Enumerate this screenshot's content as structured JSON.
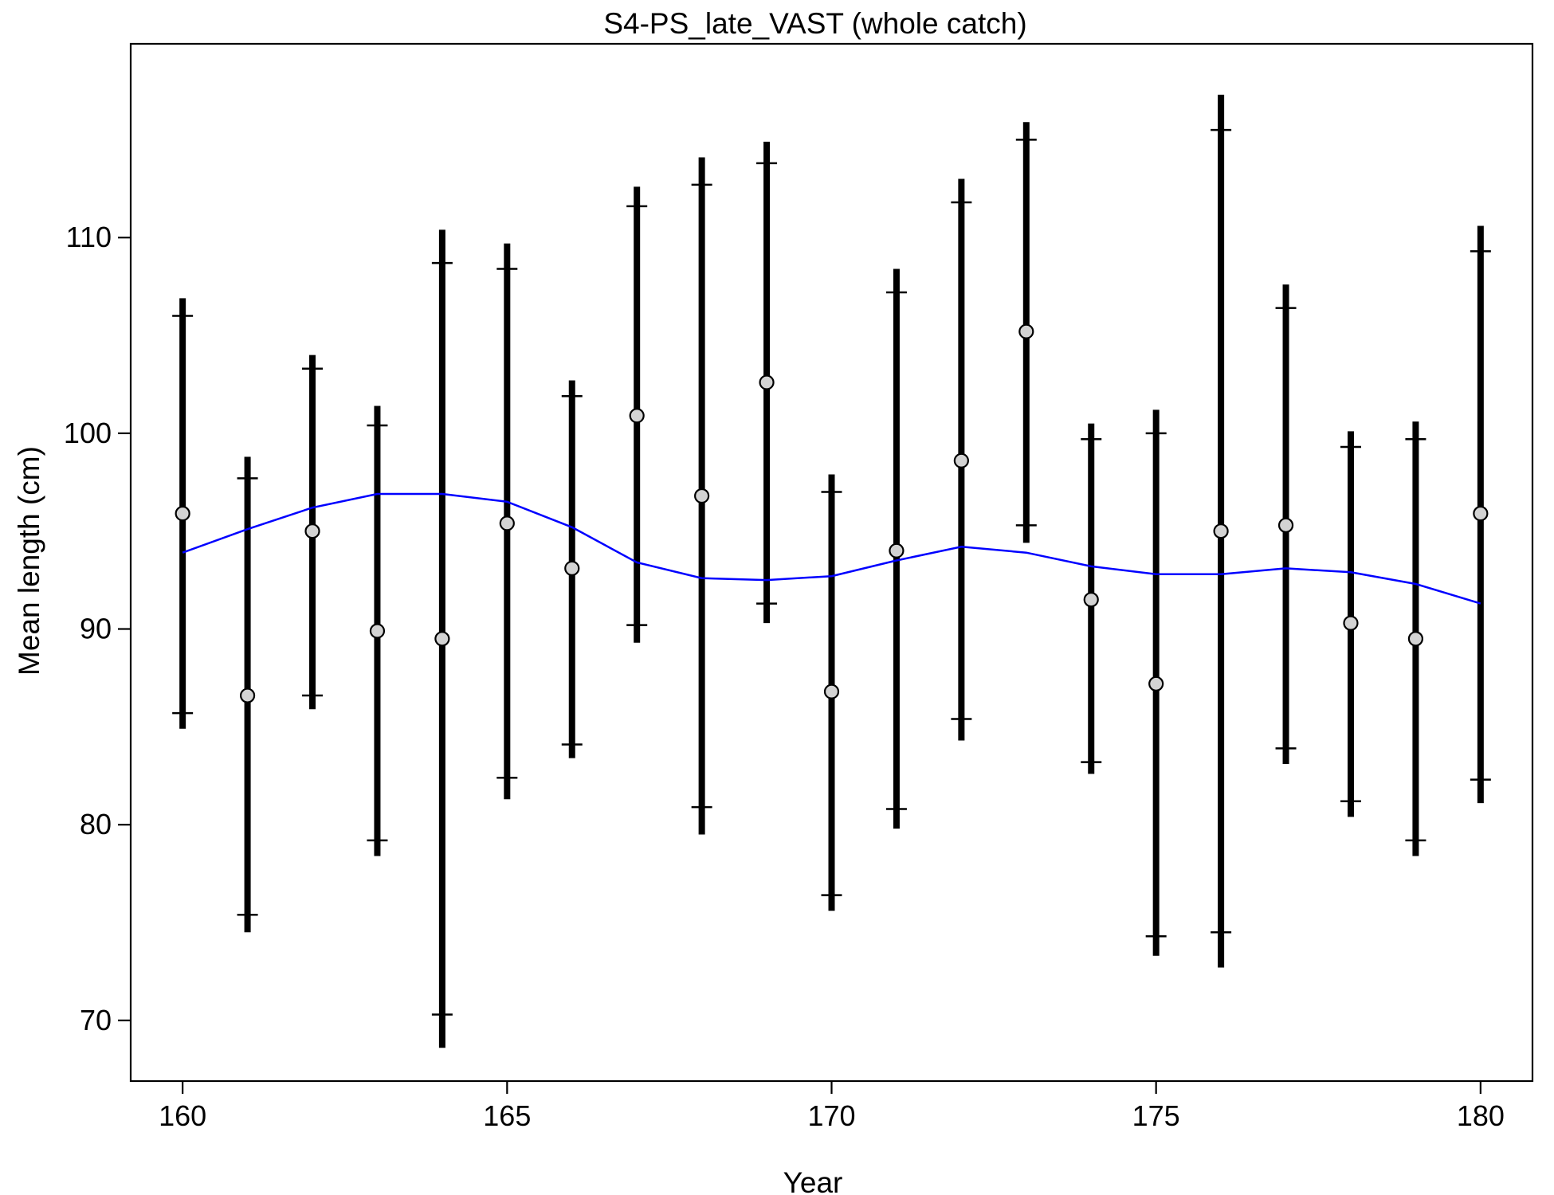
{
  "chart_data": {
    "type": "line",
    "title": "S4-PS_late_VAST (whole catch)",
    "xlabel": "Year",
    "ylabel": "Mean length (cm)",
    "xlim": [
      159.2,
      180.8
    ],
    "ylim": [
      66.9,
      119.9
    ],
    "xticks": [
      160,
      165,
      170,
      175,
      180
    ],
    "yticks": [
      70,
      80,
      90,
      100,
      110
    ],
    "grid": false,
    "legend": "none",
    "colors": {
      "observed_points": "#d3d3d3",
      "observed_outline": "#000000",
      "error_bars": "#000000",
      "expected_line": "#0000ff"
    },
    "series": [
      {
        "type": "errorbar_points",
        "x": [
          160,
          161,
          162,
          163,
          164,
          165,
          166,
          167,
          168,
          169,
          170,
          171,
          172,
          173,
          174,
          175,
          176,
          177,
          178,
          179,
          180
        ],
        "y": [
          95.9,
          86.6,
          95.0,
          89.9,
          89.5,
          95.4,
          93.1,
          100.9,
          96.8,
          102.6,
          86.8,
          94.0,
          98.6,
          105.2,
          91.5,
          87.2,
          95.0,
          95.3,
          90.3,
          89.5,
          95.9
        ],
        "outer_low": [
          84.9,
          74.5,
          85.9,
          78.4,
          68.6,
          81.3,
          83.4,
          89.3,
          79.5,
          90.3,
          75.6,
          79.8,
          84.3,
          94.4,
          82.6,
          73.3,
          72.7,
          83.1,
          80.4,
          78.4,
          81.1
        ],
        "outer_high": [
          106.9,
          98.8,
          104.0,
          101.4,
          110.4,
          109.7,
          102.7,
          112.6,
          114.1,
          114.9,
          97.9,
          108.4,
          113.0,
          115.9,
          100.5,
          101.2,
          117.3,
          107.6,
          100.1,
          100.6,
          110.6
        ],
        "inner_low": [
          85.7,
          75.4,
          86.6,
          79.2,
          70.3,
          82.4,
          84.1,
          90.2,
          80.9,
          91.3,
          76.4,
          80.8,
          85.4,
          95.3,
          83.2,
          74.3,
          74.5,
          83.9,
          81.2,
          79.2,
          82.3
        ],
        "inner_high": [
          106.0,
          97.7,
          103.3,
          100.4,
          108.7,
          108.4,
          101.9,
          111.6,
          112.7,
          113.8,
          97.0,
          107.2,
          111.8,
          115.0,
          99.7,
          100.0,
          115.5,
          106.4,
          99.3,
          99.7,
          109.3
        ]
      },
      {
        "type": "line",
        "x": [
          160,
          161,
          162,
          163,
          164,
          165,
          166,
          167,
          168,
          169,
          170,
          171,
          172,
          173,
          174,
          175,
          176,
          177,
          178,
          179,
          180
        ],
        "y": [
          93.9,
          95.1,
          96.2,
          96.9,
          96.9,
          96.5,
          95.2,
          93.4,
          92.6,
          92.5,
          92.7,
          93.5,
          94.2,
          93.9,
          93.2,
          92.8,
          92.8,
          93.1,
          92.9,
          92.3,
          91.3
        ]
      }
    ]
  }
}
